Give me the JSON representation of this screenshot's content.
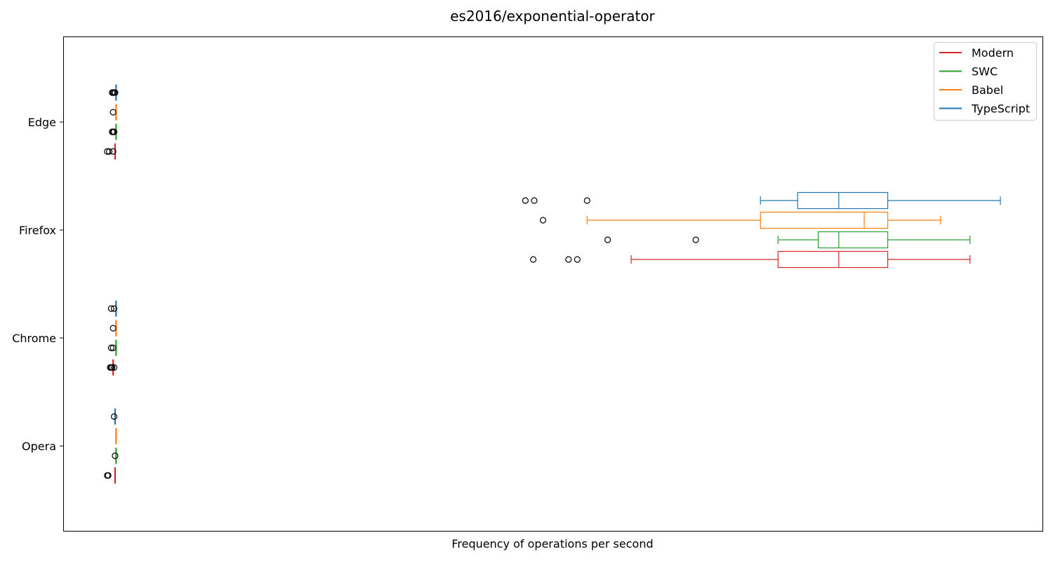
{
  "chart_data": {
    "type": "boxplot",
    "orientation": "horizontal",
    "title": "es2016/exponential-operator",
    "xlabel": "Frequency of operations per second",
    "ylabel": "",
    "x_ticks_visible": false,
    "xlim": [
      0,
      1000
    ],
    "grid": false,
    "legend_position": "top-right",
    "categories": [
      "Edge",
      "Firefox",
      "Chrome",
      "Opera"
    ],
    "series": [
      {
        "name": "Modern",
        "color": "#d62728",
        "boxes": [
          {
            "category": "Edge",
            "whisker_low": 53,
            "q1": 53,
            "median": 53,
            "q3": 53,
            "whisker_high": 53,
            "outliers": [
              45,
              47,
              51
            ]
          },
          {
            "category": "Firefox",
            "whisker_low": 580,
            "q1": 730,
            "median": 792,
            "q3": 842,
            "whisker_high": 926,
            "outliers": [
              480,
              516,
              525
            ]
          },
          {
            "category": "Chrome",
            "whisker_low": 51,
            "q1": 51,
            "median": 51,
            "q3": 51,
            "whisker_high": 51,
            "outliers": [
              48,
              49,
              50,
              52
            ]
          },
          {
            "category": "Opera",
            "whisker_low": 53,
            "q1": 53,
            "median": 53,
            "q3": 53,
            "whisker_high": 53,
            "outliers": [
              45,
              46
            ]
          }
        ]
      },
      {
        "name": "SWC",
        "color": "#2ca02c",
        "boxes": [
          {
            "category": "Edge",
            "whisker_low": 54,
            "q1": 54,
            "median": 54,
            "q3": 54,
            "whisker_high": 54,
            "outliers": [
              50,
              51,
              52
            ]
          },
          {
            "category": "Firefox",
            "whisker_low": 730,
            "q1": 771,
            "median": 792,
            "q3": 842,
            "whisker_high": 926,
            "outliers": [
              556,
              646
            ]
          },
          {
            "category": "Chrome",
            "whisker_low": 54,
            "q1": 54,
            "median": 54,
            "q3": 54,
            "whisker_high": 54,
            "outliers": [
              49,
              51
            ]
          },
          {
            "category": "Opera",
            "whisker_low": 54,
            "q1": 54,
            "median": 54,
            "q3": 54,
            "whisker_high": 54,
            "outliers": [
              53
            ]
          }
        ]
      },
      {
        "name": "Babel",
        "color": "#ff7f0e",
        "boxes": [
          {
            "category": "Edge",
            "whisker_low": 54,
            "q1": 54,
            "median": 54,
            "q3": 54,
            "whisker_high": 54,
            "outliers": [
              51
            ]
          },
          {
            "category": "Firefox",
            "whisker_low": 535,
            "q1": 712,
            "median": 818,
            "q3": 842,
            "whisker_high": 896,
            "outliers": [
              490
            ]
          },
          {
            "category": "Chrome",
            "whisker_low": 54,
            "q1": 54,
            "median": 54,
            "q3": 54,
            "whisker_high": 54,
            "outliers": [
              51
            ]
          },
          {
            "category": "Opera",
            "whisker_low": 54,
            "q1": 54,
            "median": 54,
            "q3": 54,
            "whisker_high": 54,
            "outliers": []
          }
        ]
      },
      {
        "name": "TypeScript",
        "color": "#1f77b4",
        "boxes": [
          {
            "category": "Edge",
            "whisker_low": 54,
            "q1": 54,
            "median": 54,
            "q3": 54,
            "whisker_high": 54,
            "outliers": [
              50,
              51,
              52,
              53
            ]
          },
          {
            "category": "Firefox",
            "whisker_low": 712,
            "q1": 750,
            "median": 792,
            "q3": 842,
            "whisker_high": 957,
            "outliers": [
              472,
              481,
              535
            ]
          },
          {
            "category": "Chrome",
            "whisker_low": 54,
            "q1": 54,
            "median": 54,
            "q3": 54,
            "whisker_high": 54,
            "outliers": [
              49,
              52
            ]
          },
          {
            "category": "Opera",
            "whisker_low": 53,
            "q1": 53,
            "median": 53,
            "q3": 53,
            "whisker_high": 53,
            "outliers": [
              52
            ]
          }
        ]
      }
    ]
  }
}
